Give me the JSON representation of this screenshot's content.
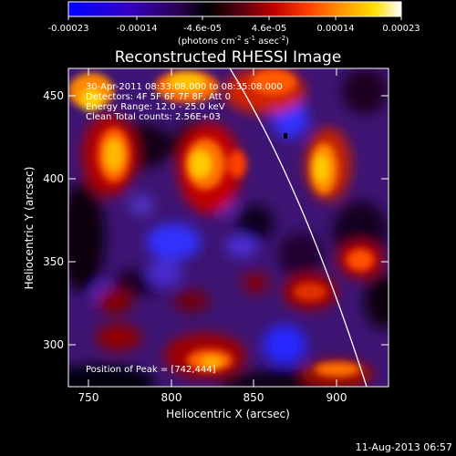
{
  "colorbar": {
    "tick_labels": [
      "-0.00023",
      "-0.00014",
      "-4.6e-05",
      "4.6e-05",
      "0.00014",
      "0.00023"
    ],
    "units_line1": "(photons cm",
    "units_sup1": "-2",
    "units_mid1": " s",
    "units_sup2": "-1",
    "units_mid2": " asec",
    "units_sup3": "-2",
    "units_end": ")",
    "gradient": [
      "#0000ff",
      "#3a00c8",
      "#4a007a",
      "#000000",
      "#6a0010",
      "#c00000",
      "#ff3c00",
      "#ff8a00",
      "#ffd400",
      "#ffffff"
    ]
  },
  "image": {
    "title": "Reconstructed RHESSI Image",
    "info_lines": [
      "30-Apr-2011 08:33:08.000 to 08:35:08.000",
      "Detectors: 4F 5F 6F 7F 8F, Att 0",
      "Energy Range: 12.0 - 25.0 keV",
      "Clean     Total counts: 2.56E+03"
    ],
    "peak_label": "Position of Peak = [742,444]"
  },
  "axes": {
    "xlabel": "Heliocentric X (arcsec)",
    "ylabel": "Heliocentric Y (arcsec)",
    "x_ticks": [
      "750",
      "800",
      "850",
      "900"
    ],
    "y_ticks": [
      "450",
      "400",
      "350",
      "300"
    ],
    "xlim": [
      732,
      924
    ],
    "ylim": [
      272,
      464
    ]
  },
  "footer": {
    "date": "11-Aug-2013 06:57"
  },
  "colors": {
    "background": "#000000",
    "text": "#ffffff",
    "limb_line": "#ffffff"
  }
}
